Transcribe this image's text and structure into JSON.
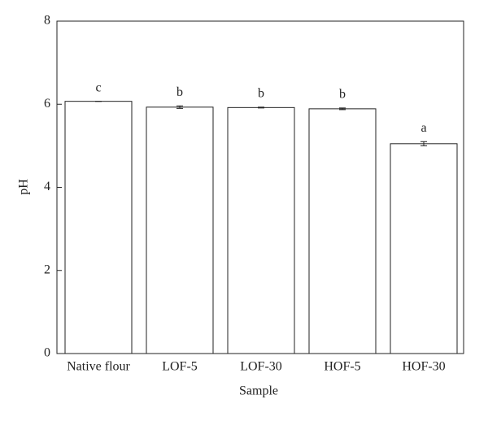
{
  "chart_data": {
    "type": "bar",
    "x_label": "Sample",
    "y_label": "pH",
    "categories": [
      "Native flour",
      "LOF-5",
      "LOF-30",
      "HOF-5",
      "HOF-30"
    ],
    "values": [
      6.07,
      5.93,
      5.92,
      5.89,
      5.05
    ],
    "errors": [
      0,
      0.03,
      0.01,
      0.02,
      0.05
    ],
    "annotations": [
      "c",
      "b",
      "b",
      "b",
      "a"
    ],
    "color": "#ffffff",
    "ylim": [
      0,
      8
    ],
    "yticks": [
      0,
      2,
      4,
      6,
      8
    ],
    "grid": false
  }
}
